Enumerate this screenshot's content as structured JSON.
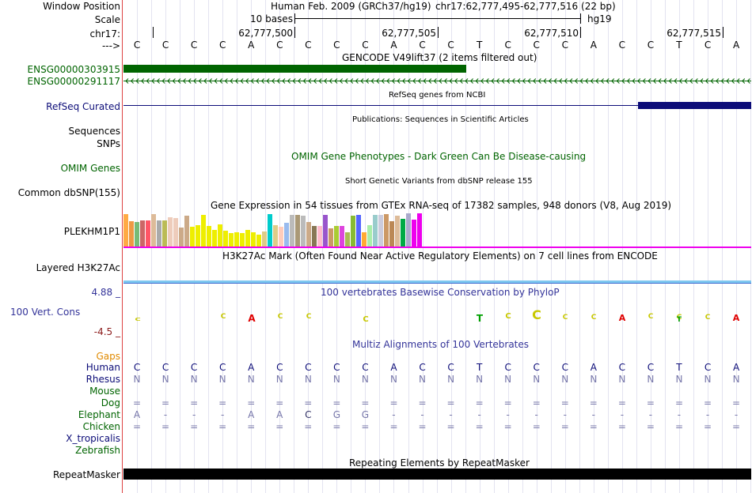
{
  "header": {
    "window_position_label": "Window Position",
    "scale_label": "Scale",
    "chrom_label": "chr17:",
    "strand_label": "--->",
    "assembly": "Human Feb. 2009 (GRCh37/hg19)",
    "position": "chr17:62,777,495-62,777,516 (22 bp)",
    "scale_text": "10 bases",
    "db": "hg19",
    "coords": [
      "62,777,500",
      "62,777,505",
      "62,777,510",
      "62,777,515"
    ]
  },
  "bases": [
    "C",
    "C",
    "C",
    "C",
    "A",
    "C",
    "C",
    "C",
    "C",
    "A",
    "C",
    "C",
    "T",
    "C",
    "C",
    "C",
    "A",
    "C",
    "C",
    "T",
    "C",
    "A"
  ],
  "tracks": {
    "gencode": {
      "title": "GENCODE V49lift37 (2 items filtered out)",
      "items": [
        "ENSG00000303915",
        "ENSG00000291117"
      ],
      "color": "#006400"
    },
    "refseq": {
      "label": "RefSeq Curated",
      "title": "RefSeq genes from NCBI",
      "color": "#0c0c78"
    },
    "publications": {
      "title": "Publications: Sequences in Scientific Articles",
      "labels": [
        "Sequences",
        "SNPs"
      ]
    },
    "omim": {
      "label": "OMIM Genes",
      "title": "OMIM Gene Phenotypes - Dark Green Can Be Disease-causing",
      "color": "#006400"
    },
    "dbsnp": {
      "label": "Common dbSNP(155)",
      "title": "Short Genetic Variants from dbSNP release 155"
    },
    "gtex": {
      "label": "PLEKHM1P1",
      "title": "Gene Expression in 54 tissues from GTEx RNA-seq of 17382 samples, 948 donors (V8, Aug 2019)",
      "levels": [
        0.97,
        0.77,
        0.74,
        0.79,
        0.79,
        0.97,
        0.79,
        0.79,
        0.88,
        0.86,
        0.57,
        0.92,
        0.6,
        0.65,
        0.95,
        0.62,
        0.49,
        0.67,
        0.48,
        0.41,
        0.44,
        0.4,
        0.51,
        0.42,
        0.35,
        0.46,
        0.97,
        0.64,
        0.59,
        0.71,
        0.96,
        0.96,
        0.94,
        0.74,
        0.63,
        0.63,
        0.96,
        0.54,
        0.62,
        0.62,
        0.44,
        0.93,
        0.96,
        0.43,
        0.64,
        0.95,
        0.96,
        0.97,
        0.77,
        0.93,
        0.84,
        0.99,
        0.82,
        0.99
      ],
      "colors": [
        "#ffaa44",
        "#ee9944",
        "#77bb77",
        "#cc6666",
        "#ff5566",
        "#ddbb99",
        "#aaaaaa",
        "#bbbb55",
        "#eeccbb",
        "#eeccbb",
        "#ccaa88",
        "#ccaa88",
        "#eeee00",
        "#eeee00",
        "#eeee00",
        "#eeee00",
        "#eeee00",
        "#eeee00",
        "#eeee00",
        "#eeee00",
        "#eeee00",
        "#eeee00",
        "#eeee00",
        "#eeee00",
        "#eeee00",
        "#ddcc88",
        "#00cccc",
        "#ddcc88",
        "#ffccbb",
        "#99bbee",
        "#bbbbbb",
        "#aa9977",
        "#bbbbbb",
        "#ccaa88",
        "#887755",
        "#ffbbcc",
        "#9955cc",
        "#cc9966",
        "#aacc33",
        "#dd44dd",
        "#aabb55",
        "#88bb33",
        "#5566ff",
        "#ffaa33",
        "#aaeeaa",
        "#99cccc",
        "#ccccdd",
        "#cc9966",
        "#bb8855",
        "#ddbb99",
        "#00aa44",
        "#aaaacc",
        "#ee00ee",
        "#ee00ee"
      ]
    },
    "h3k27ac": {
      "label": "Layered H3K27Ac",
      "title": "H3K27Ac Mark (Often Found Near Active Regulatory Elements) on 7 cell lines from ENCODE"
    },
    "phylop": {
      "label": "100 Vert. Cons",
      "max": "4.88 _",
      "min": "-4.5 _",
      "title": "100 vertebrates Basewise Conservation by PhyloP",
      "color": "#333399"
    },
    "multiz": {
      "title": "Multiz Alignments of 100 Vertebrates",
      "gaps_label": "Gaps",
      "species": [
        {
          "name": "Human",
          "row": "CCCCACCCCACCTCCCACCTCA"
        },
        {
          "name": "Rhesus",
          "row": "NNNNNNNNNNNNNNNNNNNNNN"
        },
        {
          "name": "Mouse",
          "row": ""
        },
        {
          "name": "Dog",
          "row": "======================"
        },
        {
          "name": "Elephant",
          "row": "A---AACGG-------------"
        },
        {
          "name": "Chicken",
          "row": "======================"
        },
        {
          "name": "X_tropicalis",
          "row": ""
        },
        {
          "name": "Zebrafish",
          "row": ""
        }
      ]
    },
    "repeatmasker": {
      "label": "RepeatMasker",
      "title": "Repeating Elements by RepeatMasker"
    }
  }
}
